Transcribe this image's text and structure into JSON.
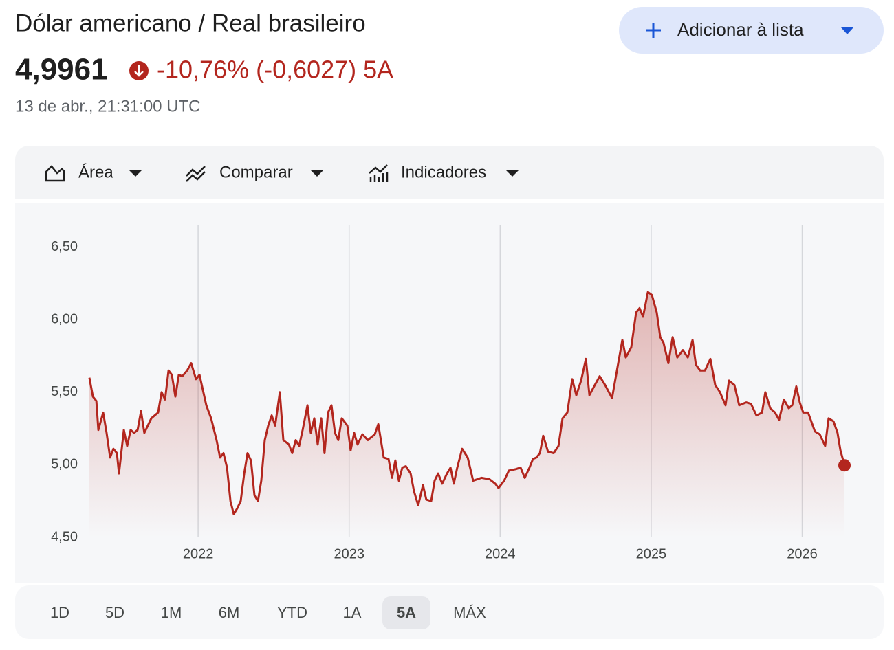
{
  "header": {
    "title": "Dólar americano / Real brasileiro",
    "price": "4,9961",
    "change": "-10,76% (-0,6027) 5A",
    "timestamp": "13 de abr., 21:31:00 UTC",
    "add_button": "Adicionar à lista"
  },
  "toolbar": [
    "Área",
    "Comparar",
    "Indicadores"
  ],
  "ranges": [
    {
      "label": "1D",
      "selected": false
    },
    {
      "label": "5D",
      "selected": false
    },
    {
      "label": "1M",
      "selected": false
    },
    {
      "label": "6M",
      "selected": false
    },
    {
      "label": "YTD",
      "selected": false
    },
    {
      "label": "1A",
      "selected": false
    },
    {
      "label": "5A",
      "selected": true
    },
    {
      "label": "MÁX",
      "selected": false
    }
  ],
  "chart_data": {
    "type": "line",
    "color": "#b3261e",
    "area": true,
    "grid": "x",
    "marker_last": true,
    "xlim": [
      2021.28,
      2026.28
    ],
    "xticks": [
      2022,
      2023,
      2024,
      2025,
      2026
    ],
    "ylim": [
      4.5,
      6.65
    ],
    "yticks": [
      {
        "value": 4.5,
        "label": "4,50"
      },
      {
        "value": 5,
        "label": "5,00"
      },
      {
        "value": 5.5,
        "label": "5,50"
      },
      {
        "value": 6,
        "label": "6,00"
      },
      {
        "value": 6.5,
        "label": "6,50"
      }
    ],
    "x": [
      2021.28,
      2021.303,
      2021.326,
      2021.339,
      2021.371,
      2021.394,
      2021.417,
      2021.439,
      2021.462,
      2021.476,
      2021.508,
      2021.53,
      2021.553,
      2021.576,
      2021.599,
      2021.622,
      2021.644,
      2021.69,
      2021.735,
      2021.758,
      2021.781,
      2021.804,
      2021.826,
      2021.849,
      2021.872,
      2021.895,
      2021.927,
      2021.954,
      2021.986,
      2022.009,
      2022.054,
      2022.086,
      2022.122,
      2022.145,
      2022.168,
      2022.191,
      2022.214,
      2022.236,
      2022.259,
      2022.282,
      2022.305,
      2022.327,
      2022.35,
      2022.373,
      2022.396,
      2022.418,
      2022.441,
      2022.464,
      2022.487,
      2022.51,
      2022.541,
      2022.564,
      2022.601,
      2022.623,
      2022.646,
      2022.669,
      2022.692,
      2022.724,
      2022.746,
      2022.769,
      2022.792,
      2022.815,
      2022.837,
      2022.86,
      2022.883,
      2022.906,
      2022.928,
      2022.951,
      2022.988,
      2023.01,
      2023.033,
      2023.056,
      2023.088,
      2023.124,
      2023.17,
      2023.193,
      2023.229,
      2023.261,
      2023.284,
      2023.306,
      2023.329,
      2023.352,
      2023.375,
      2023.407,
      2023.429,
      2023.457,
      2023.489,
      2023.511,
      2023.543,
      2023.566,
      2023.589,
      2023.616,
      2023.648,
      2023.671,
      2023.693,
      2023.716,
      2023.748,
      2023.785,
      2023.821,
      2023.876,
      2023.93,
      2023.967,
      2023.989,
      2024.026,
      2024.058,
      2024.103,
      2024.135,
      2024.163,
      2024.194,
      2024.217,
      2024.24,
      2024.263,
      2024.285,
      2024.317,
      2024.354,
      2024.386,
      2024.413,
      2024.445,
      2024.477,
      2024.504,
      2024.536,
      2024.568,
      2024.591,
      2024.627,
      2024.659,
      2024.695,
      2024.741,
      2024.773,
      2024.809,
      2024.832,
      2024.868,
      2024.9,
      2024.923,
      2024.946,
      2024.978,
      2025.005,
      2025.037,
      2025.06,
      2025.082,
      2025.114,
      2025.142,
      2025.173,
      2025.21,
      2025.242,
      2025.274,
      2025.296,
      2025.324,
      2025.356,
      2025.392,
      2025.424,
      2025.456,
      2025.492,
      2025.515,
      2025.551,
      2025.583,
      2025.629,
      2025.661,
      2025.697,
      2025.734,
      2025.756,
      2025.788,
      2025.82,
      2025.847,
      2025.879,
      2025.911,
      2025.934,
      2025.961,
      2025.984,
      2026.007,
      2026.039,
      2026.084,
      2026.116,
      2026.152,
      2026.175,
      2026.207,
      2026.234,
      2026.253,
      2026.28
    ],
    "values": [
      5.6,
      5.47,
      5.44,
      5.24,
      5.36,
      5.22,
      5.05,
      5.11,
      5.08,
      4.94,
      5.24,
      5.13,
      5.24,
      5.22,
      5.24,
      5.37,
      5.22,
      5.32,
      5.36,
      5.5,
      5.45,
      5.65,
      5.62,
      5.47,
      5.62,
      5.61,
      5.65,
      5.7,
      5.59,
      5.62,
      5.41,
      5.32,
      5.17,
      5.05,
      5.08,
      4.98,
      4.75,
      4.66,
      4.7,
      4.75,
      4.94,
      5.08,
      5.03,
      4.79,
      4.75,
      4.89,
      5.17,
      5.27,
      5.34,
      5.27,
      5.5,
      5.17,
      5.14,
      5.08,
      5.17,
      5.13,
      5.24,
      5.41,
      5.22,
      5.32,
      5.14,
      5.32,
      5.08,
      5.36,
      5.41,
      5.22,
      5.17,
      5.32,
      5.27,
      5.1,
      5.22,
      5.14,
      5.21,
      5.17,
      5.21,
      5.28,
      5.05,
      5.04,
      4.91,
      5.03,
      4.89,
      4.98,
      4.99,
      4.94,
      4.82,
      4.72,
      4.86,
      4.76,
      4.75,
      4.89,
      4.94,
      4.87,
      4.94,
      4.98,
      4.87,
      4.98,
      5.11,
      5.05,
      4.89,
      4.91,
      4.9,
      4.87,
      4.84,
      4.89,
      4.96,
      4.97,
      4.98,
      4.91,
      4.98,
      5.04,
      5.05,
      5.08,
      5.2,
      5.09,
      5.08,
      5.13,
      5.32,
      5.36,
      5.59,
      5.48,
      5.58,
      5.73,
      5.48,
      5.55,
      5.61,
      5.55,
      5.46,
      5.65,
      5.86,
      5.74,
      5.81,
      6.05,
      6.08,
      6.02,
      6.19,
      6.17,
      6.05,
      5.88,
      5.84,
      5.7,
      5.88,
      5.74,
      5.79,
      5.74,
      5.86,
      5.69,
      5.65,
      5.65,
      5.73,
      5.55,
      5.5,
      5.41,
      5.58,
      5.55,
      5.41,
      5.43,
      5.42,
      5.34,
      5.36,
      5.5,
      5.39,
      5.36,
      5.31,
      5.45,
      5.39,
      5.41,
      5.54,
      5.43,
      5.36,
      5.36,
      5.23,
      5.21,
      5.13,
      5.32,
      5.3,
      5.22,
      5.1,
      4.9961
    ]
  }
}
